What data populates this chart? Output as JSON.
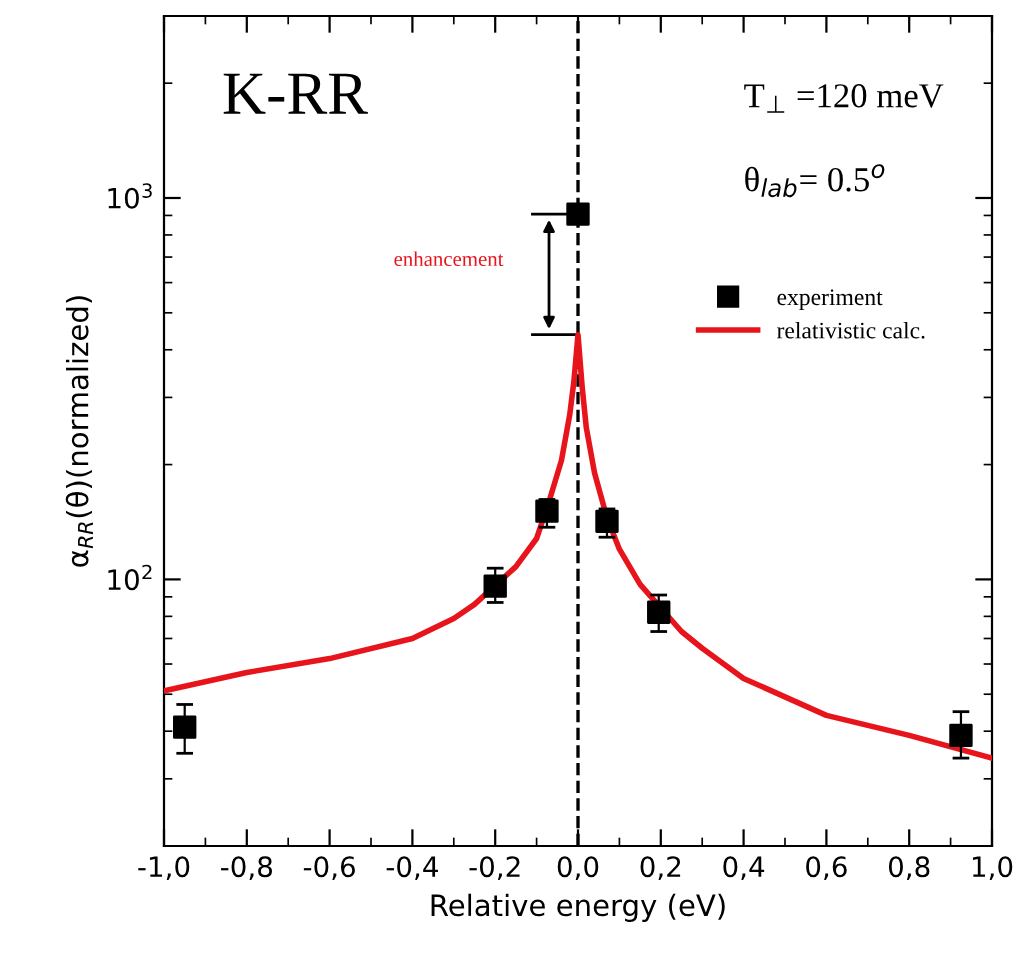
{
  "chart_data": {
    "type": "scatter",
    "xlabel": "Relative energy (eV)",
    "ylabel": "α$_{RR}$(θ)(normalized)",
    "xlim": [
      -1.0,
      1.0
    ],
    "xticks": [
      {
        "value": -1.0,
        "label": "-1,0"
      },
      {
        "value": -0.8,
        "label": "-0,8"
      },
      {
        "value": -0.6,
        "label": "-0,6"
      },
      {
        "value": -0.4,
        "label": "-0,4"
      },
      {
        "value": -0.2,
        "label": "-0,2"
      },
      {
        "value": 0.0,
        "label": "0,0"
      },
      {
        "value": 0.2,
        "label": "0,2"
      },
      {
        "value": 0.4,
        "label": "0,4"
      },
      {
        "value": 0.6,
        "label": "0,6"
      },
      {
        "value": 0.8,
        "label": "0,8"
      },
      {
        "value": 1.0,
        "label": "1,0"
      }
    ],
    "log": "y",
    "ylim": [
      20,
      3000
    ],
    "yticks": [
      {
        "value": 100,
        "label": "10$^{2}$"
      },
      {
        "value": 1000,
        "label": "10$^{3}$"
      }
    ],
    "grid": false,
    "legend": "right",
    "series": [
      {
        "name": "experiment",
        "marker": "square",
        "color": "#000000",
        "x": [
          -0.95,
          -0.2,
          -0.075,
          0.0,
          0.07,
          0.195,
          0.925
        ],
        "values": [
          41,
          96,
          151,
          907,
          142,
          82,
          39
        ],
        "errors": [
          [
            35,
            47
          ],
          [
            87,
            107
          ],
          [
            137,
            162
          ],
          null,
          [
            129,
            153
          ],
          [
            73,
            91
          ],
          [
            34,
            45
          ]
        ]
      },
      {
        "name": "relativistic calc.",
        "type": "line",
        "marker": "none",
        "line_style": "solid",
        "color": "#e8141c",
        "x": [
          -1.0,
          -0.8,
          -0.6,
          -0.4,
          -0.3,
          -0.25,
          -0.15,
          -0.1,
          -0.07,
          -0.04,
          -0.02,
          -0.01,
          0.0,
          0.01,
          0.02,
          0.04,
          0.07,
          0.1,
          0.15,
          0.25,
          0.3,
          0.4,
          0.6,
          0.8,
          1.0
        ],
        "values": [
          51,
          57,
          62,
          70,
          79,
          86,
          108,
          128,
          160,
          205,
          270,
          330,
          438,
          320,
          250,
          190,
          145,
          120,
          97,
          73,
          66,
          55,
          44,
          39,
          34
        ]
      }
    ],
    "ref_lines": [
      {
        "axis": "x",
        "value": 0.0,
        "color": "#000000",
        "line_style": "dashed"
      }
    ],
    "annotations": [
      "K-RR",
      "T$_{⊥}$ =120 meV",
      "θ$_{lab}$= 0.5$^{o}$",
      "enhancement"
    ]
  }
}
